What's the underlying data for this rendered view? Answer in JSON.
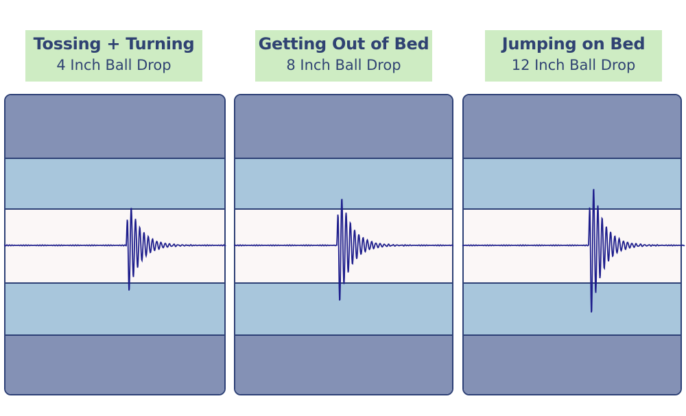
{
  "panels": [
    {
      "title": "Tossing + Turning",
      "subtitle": "4 Inch Ball Drop",
      "amplitude": 0.52
    },
    {
      "title": "Getting Out of Bed",
      "subtitle": "8 Inch Ball Drop",
      "amplitude": 0.64
    },
    {
      "title": "Jumping on Bed",
      "subtitle": "12 Inch Ball Drop",
      "amplitude": 0.78
    }
  ],
  "colors": {
    "label_bg": "#ceecc3",
    "label_text": "#2f4272",
    "outer_band": "#8491b5",
    "middle_band": "#a8c6dc",
    "center_band": "#fbf7f7",
    "border": "#2c3f75",
    "wave": "#1e1e8c"
  }
}
